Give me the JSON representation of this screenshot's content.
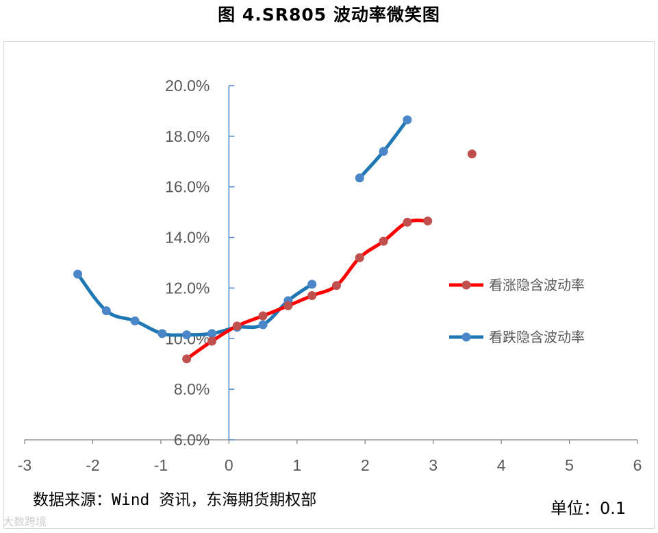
{
  "title": "图 4.SR805 波动率微笑图",
  "source_note": "数据来源：Wind 资讯，东海期货期权部",
  "unit_note": "单位：0.1",
  "watermark": "大数跨境",
  "colors": {
    "call_line": "#ff0000",
    "call_marker": "#c0504d",
    "put_line": "#1f77b4",
    "put_marker": "#4a86c8",
    "axis": "#4a86c8",
    "tick_text": "#595959"
  },
  "chart_data": {
    "type": "line",
    "title": "图 4.SR805 波动率微笑图",
    "xlabel": "",
    "ylabel": "",
    "xlim": [
      -3,
      6
    ],
    "ylim": [
      6,
      20
    ],
    "x_ticks": [
      -3,
      -2,
      -1,
      0,
      1,
      2,
      3,
      4,
      5,
      6
    ],
    "y_ticks": [
      6,
      8,
      10,
      12,
      14,
      16,
      18,
      20
    ],
    "x_tick_labels": [
      "-3",
      "-2",
      "-1",
      "0",
      "1",
      "2",
      "3",
      "4",
      "5",
      "6"
    ],
    "y_tick_labels": [
      "6.0%",
      "8.0%",
      "10.0%",
      "12.0%",
      "14.0%",
      "16.0%",
      "18.0%",
      "20.0%"
    ],
    "y_unit": "%",
    "grid": false,
    "legend_position": "right",
    "series": [
      {
        "name": "看涨隐含波动率",
        "color": "#ff0000",
        "marker_color": "#c0504d",
        "points": [
          [
            -0.62,
            9.2
          ],
          [
            -0.25,
            9.9
          ],
          [
            0.12,
            10.5
          ],
          [
            0.5,
            10.9
          ],
          [
            0.87,
            11.3
          ],
          [
            1.22,
            11.7
          ],
          [
            1.58,
            12.1
          ],
          [
            1.92,
            13.2
          ],
          [
            2.27,
            13.85
          ],
          [
            2.62,
            14.6
          ],
          [
            2.92,
            14.65
          ],
          [
            3.57,
            17.3
          ]
        ],
        "segments": [
          [
            0,
            10
          ],
          [
            11,
            11
          ]
        ]
      },
      {
        "name": "看跌隐含波动率",
        "color": "#1f77b4",
        "marker_color": "#4a86c8",
        "points": [
          [
            -2.22,
            12.55
          ],
          [
            -1.8,
            11.1
          ],
          [
            -1.38,
            10.7
          ],
          [
            -0.98,
            10.2
          ],
          [
            -0.62,
            10.15
          ],
          [
            -0.25,
            10.2
          ],
          [
            0.12,
            10.45
          ],
          [
            0.5,
            10.55
          ],
          [
            0.87,
            11.5
          ],
          [
            1.22,
            12.15
          ],
          [
            1.92,
            16.35
          ],
          [
            2.27,
            17.4
          ],
          [
            2.62,
            18.65
          ]
        ],
        "segments": [
          [
            0,
            9
          ],
          [
            10,
            12
          ]
        ]
      }
    ]
  }
}
